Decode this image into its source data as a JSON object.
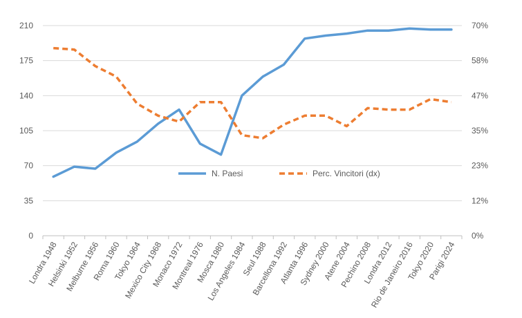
{
  "chart_data": {
    "type": "line",
    "categories": [
      "Londra 1948",
      "Helsinki 1952",
      "Melburne 1956",
      "Roma 1960",
      "Tokyo 1964",
      "Mexico City 1968",
      "Monaco 1972",
      "Montreal 1976",
      "Mosca 1980",
      "Los Angeles 1984",
      "Seul 1988",
      "Barcellona 1992",
      "Atlanta 1996",
      "Sydney 2000",
      "Atene 2004",
      "Pechino 2008",
      "Londra 2012",
      "Rio de Janeiro 2016",
      "Tokyo 2020",
      "Parigi 2024"
    ],
    "series": [
      {
        "name": "N. Paesi",
        "axis": "left",
        "style": "solid",
        "color": "#5B9BD5",
        "values": [
          59,
          69,
          67,
          83,
          94,
          112,
          126,
          92,
          81,
          140,
          159,
          171,
          197,
          200,
          202,
          205,
          205,
          207,
          206,
          206
        ]
      },
      {
        "name": "Perc. Vincitori (dx)",
        "axis": "right",
        "style": "dashed",
        "color": "#ED7D31",
        "values": [
          0.625,
          0.62,
          0.565,
          0.53,
          0.44,
          0.4,
          0.38,
          0.445,
          0.445,
          0.335,
          0.325,
          0.37,
          0.4,
          0.4,
          0.365,
          0.425,
          0.42,
          0.42,
          0.455,
          0.445
        ]
      }
    ],
    "y_left": {
      "min": 0,
      "max": 210,
      "ticks": [
        0,
        35,
        70,
        105,
        140,
        175,
        210
      ],
      "tick_labels": [
        "0",
        "35",
        "70",
        "105",
        "140",
        "175",
        "210"
      ]
    },
    "y_right": {
      "min": 0,
      "max": 0.7,
      "ticks": [
        0,
        0.1167,
        0.2333,
        0.35,
        0.4667,
        0.5833,
        0.7
      ],
      "tick_labels": [
        "0%",
        "12%",
        "23%",
        "35%",
        "47%",
        "58%",
        "70%"
      ]
    },
    "grid": true,
    "legend_position": "center"
  }
}
